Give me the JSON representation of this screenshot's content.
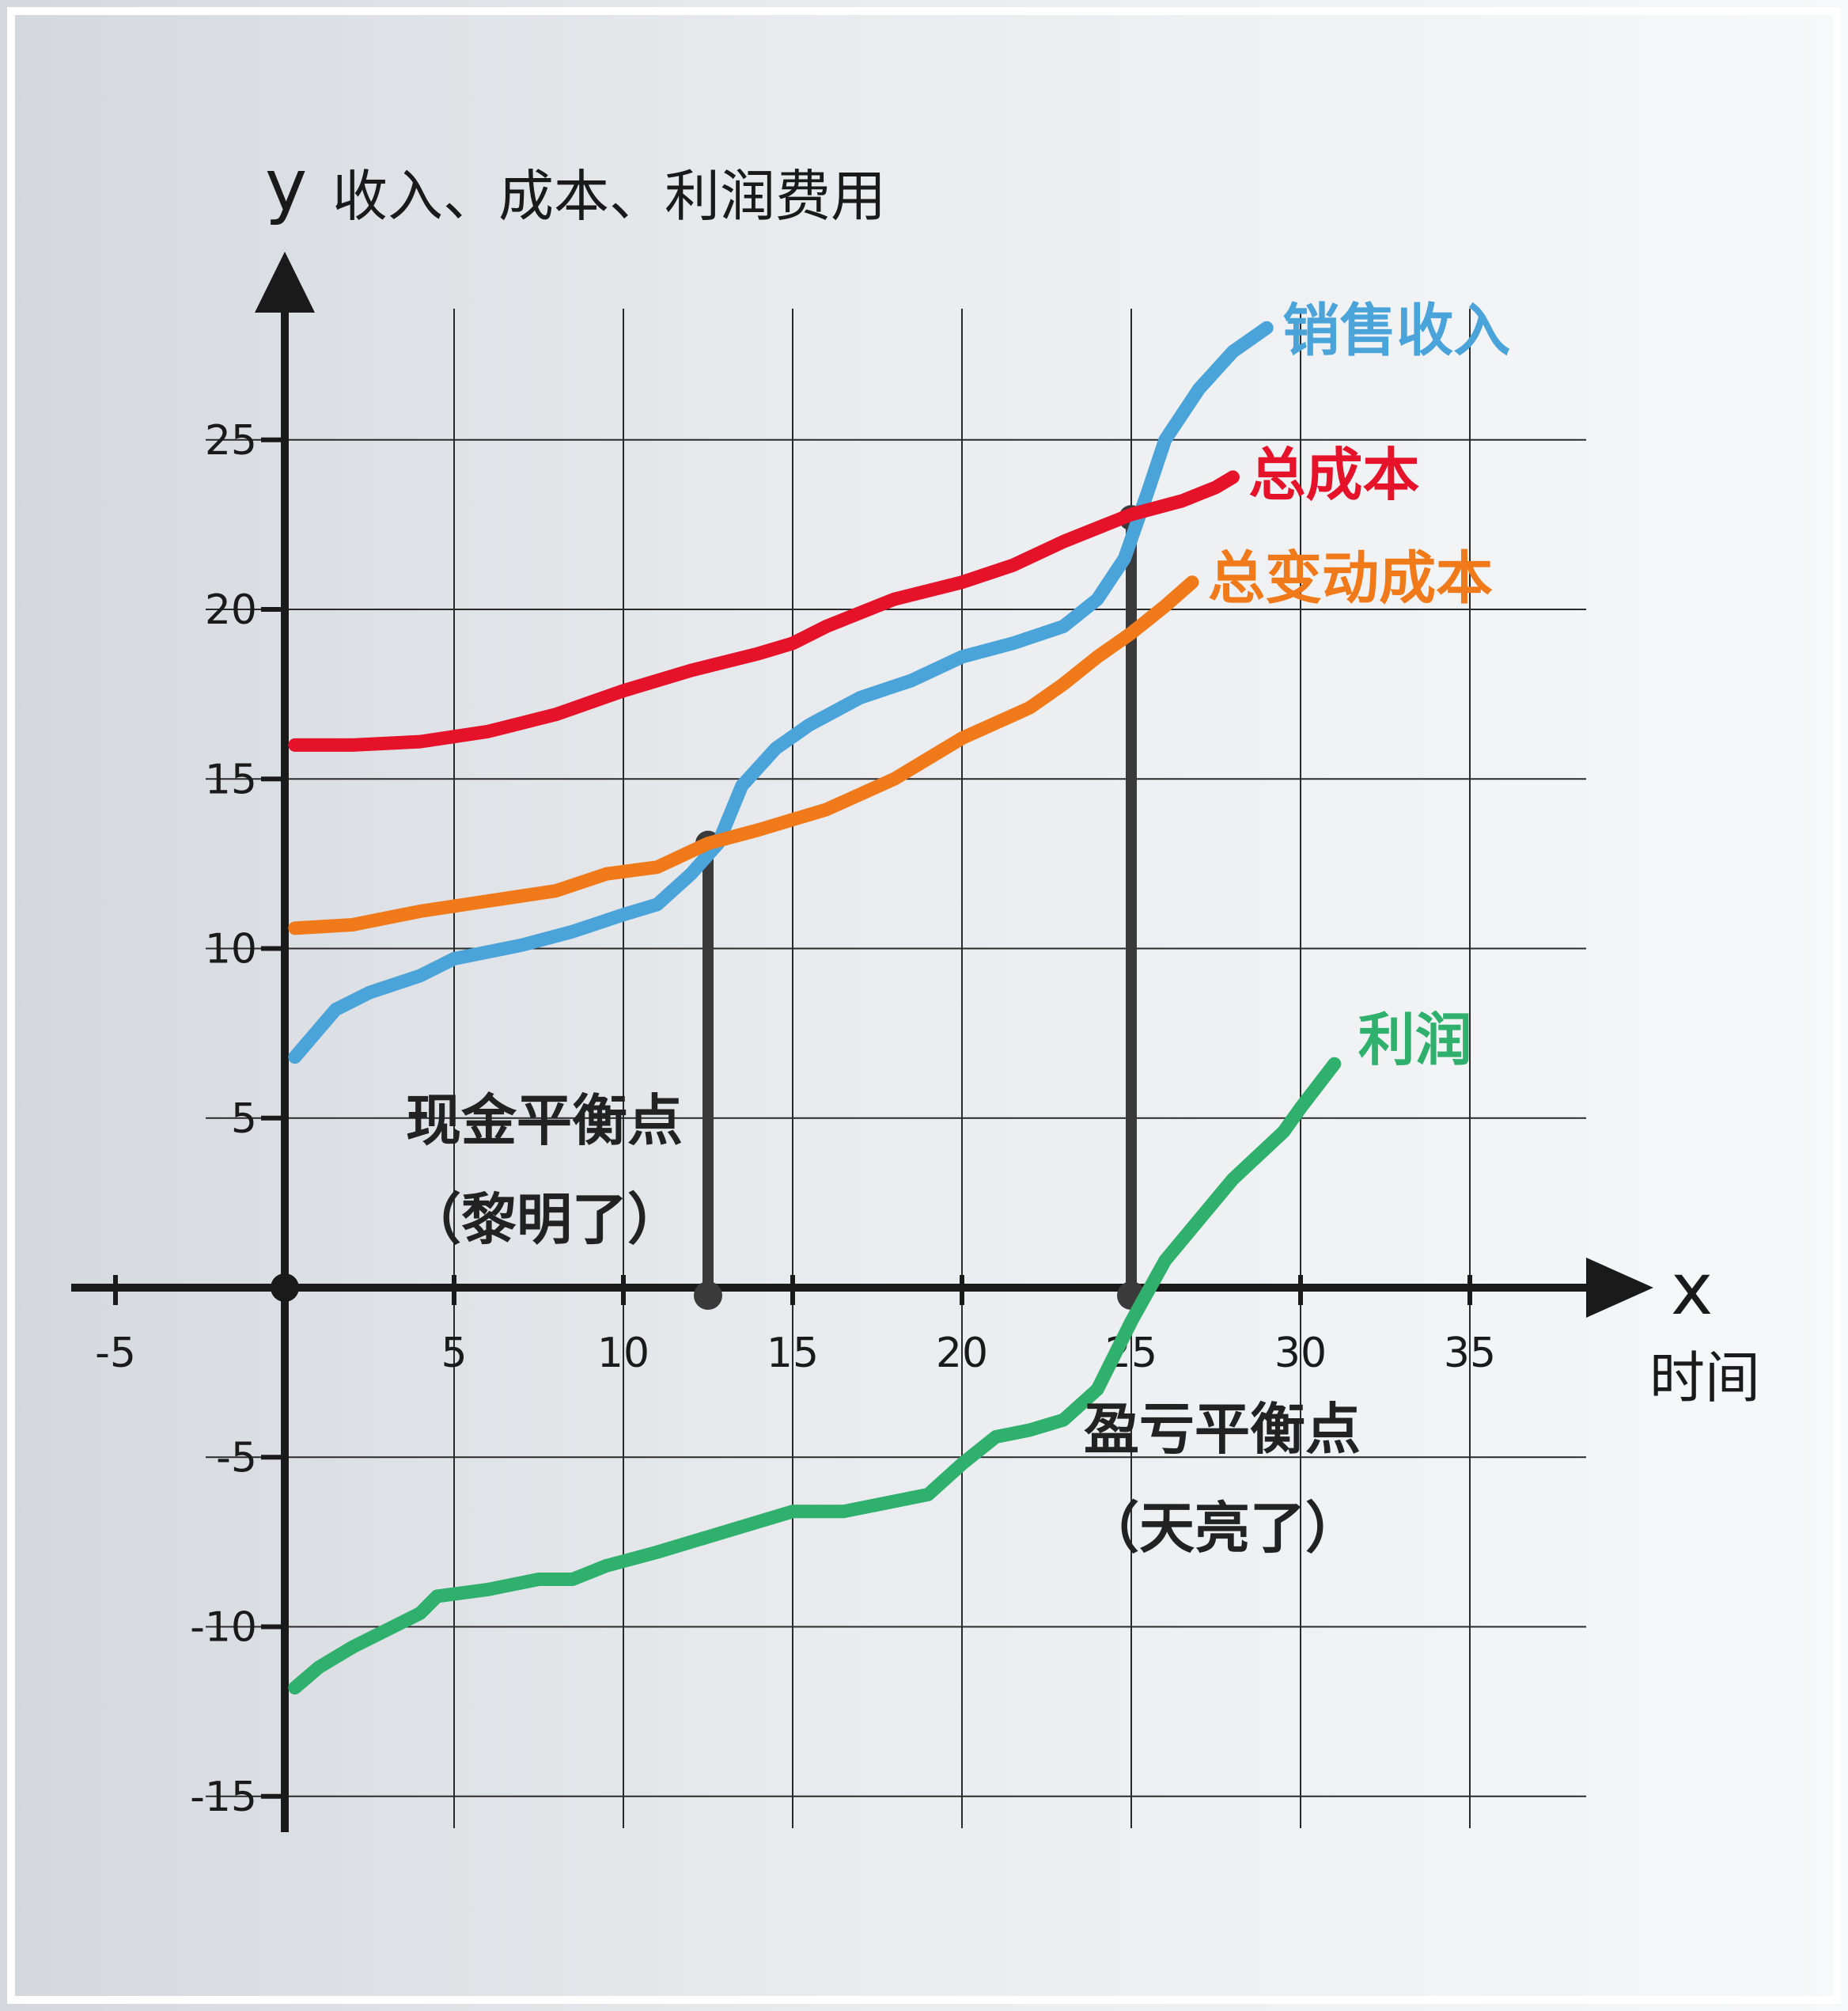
{
  "chart_data": {
    "type": "line",
    "xlabel": "时间",
    "ylabel": "收入、成本、利润费用",
    "x_axis_letter": "x",
    "y_axis_letter": "y",
    "xlim": [
      -5,
      38
    ],
    "ylim": [
      -16,
      28
    ],
    "x_ticks": [
      -5,
      5,
      10,
      15,
      20,
      25,
      30,
      35
    ],
    "y_ticks": [
      25,
      20,
      15,
      10,
      5,
      -5,
      -10,
      -15
    ],
    "grid": true,
    "series": [
      {
        "name": "销售收入",
        "color": "#4aa3d9",
        "points": [
          [
            0.3,
            6.8
          ],
          [
            1.5,
            8.2
          ],
          [
            2.5,
            8.7
          ],
          [
            4,
            9.2
          ],
          [
            5,
            9.7
          ],
          [
            7,
            10.1
          ],
          [
            8.5,
            10.5
          ],
          [
            10,
            11
          ],
          [
            11,
            11.3
          ],
          [
            12,
            12.2
          ],
          [
            12.8,
            13.1
          ],
          [
            13.5,
            14.8
          ],
          [
            14.5,
            15.9
          ],
          [
            15.5,
            16.6
          ],
          [
            17,
            17.4
          ],
          [
            18.5,
            17.9
          ],
          [
            20,
            18.6
          ],
          [
            21.5,
            19
          ],
          [
            23,
            19.5
          ],
          [
            24,
            20.3
          ],
          [
            24.8,
            21.5
          ],
          [
            25.5,
            23.5
          ],
          [
            26,
            25
          ],
          [
            27,
            26.5
          ],
          [
            28,
            27.6
          ],
          [
            29,
            28.3
          ]
        ]
      },
      {
        "name": "总成本",
        "color": "#e5122a",
        "points": [
          [
            0.3,
            16
          ],
          [
            2,
            16
          ],
          [
            4,
            16.1
          ],
          [
            6,
            16.4
          ],
          [
            8,
            16.9
          ],
          [
            10,
            17.6
          ],
          [
            12,
            18.2
          ],
          [
            14,
            18.7
          ],
          [
            15,
            19
          ],
          [
            16,
            19.5
          ],
          [
            18,
            20.3
          ],
          [
            20,
            20.8
          ],
          [
            21.5,
            21.3
          ],
          [
            23,
            22
          ],
          [
            25,
            22.8
          ],
          [
            26.5,
            23.2
          ],
          [
            27.5,
            23.6
          ],
          [
            28,
            23.9
          ]
        ]
      },
      {
        "name": "总变动成本",
        "color": "#f07a1a",
        "points": [
          [
            0.3,
            10.6
          ],
          [
            2,
            10.7
          ],
          [
            4,
            11.1
          ],
          [
            6,
            11.4
          ],
          [
            8,
            11.7
          ],
          [
            9.5,
            12.2
          ],
          [
            11,
            12.4
          ],
          [
            12.5,
            13.1
          ],
          [
            14,
            13.5
          ],
          [
            16,
            14.1
          ],
          [
            18,
            15
          ],
          [
            20,
            16.2
          ],
          [
            22,
            17.1
          ],
          [
            23,
            17.8
          ],
          [
            24,
            18.6
          ],
          [
            25,
            19.3
          ],
          [
            26,
            20.1
          ],
          [
            26.8,
            20.8
          ]
        ]
      },
      {
        "name": "利润",
        "color": "#2fb06d",
        "points": [
          [
            0.3,
            -11.8
          ],
          [
            1,
            -11.2
          ],
          [
            2,
            -10.6
          ],
          [
            3,
            -10.1
          ],
          [
            4,
            -9.6
          ],
          [
            4.5,
            -9.1
          ],
          [
            6,
            -8.9
          ],
          [
            7.5,
            -8.6
          ],
          [
            8.5,
            -8.6
          ],
          [
            9.5,
            -8.2
          ],
          [
            11,
            -7.8
          ],
          [
            13,
            -7.2
          ],
          [
            15,
            -6.6
          ],
          [
            16.5,
            -6.6
          ],
          [
            18,
            -6.3
          ],
          [
            19,
            -6.1
          ],
          [
            20,
            -5.2
          ],
          [
            21,
            -4.4
          ],
          [
            22,
            -4.2
          ],
          [
            23,
            -3.9
          ],
          [
            24,
            -3
          ],
          [
            25,
            -1
          ],
          [
            26,
            0.8
          ],
          [
            27,
            2
          ],
          [
            28,
            3.2
          ],
          [
            29.5,
            4.6
          ],
          [
            30,
            5.3
          ],
          [
            31,
            6.6
          ]
        ]
      }
    ],
    "annotations": [
      {
        "label_lines": [
          "现金平衡点",
          "（黎明了）"
        ],
        "x": 12.5,
        "y": 13.1
      },
      {
        "label_lines": [
          "盈亏平衡点",
          "（天亮了）"
        ],
        "x": 25,
        "y": 22.7
      }
    ]
  }
}
